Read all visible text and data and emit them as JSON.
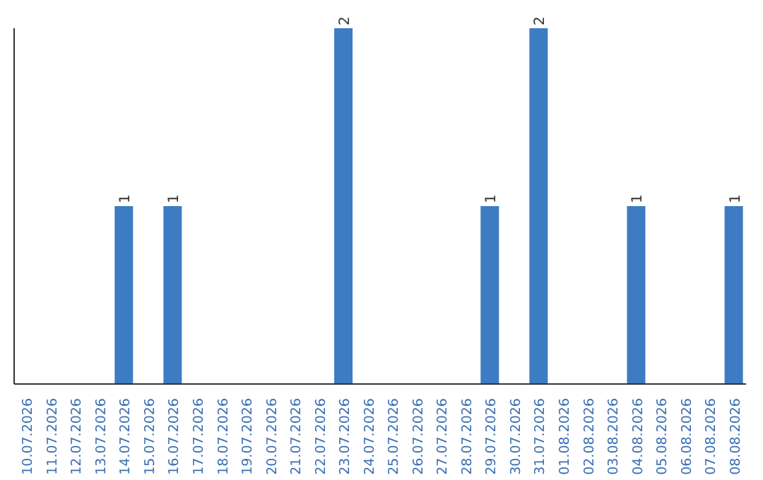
{
  "chart_data": {
    "type": "bar",
    "categories": [
      "10.07.2026",
      "11.07.2026",
      "12.07.2026",
      "13.07.2026",
      "14.07.2026",
      "15.07.2026",
      "16.07.2026",
      "17.07.2026",
      "18.07.2026",
      "19.07.2026",
      "20.07.2026",
      "21.07.2026",
      "22.07.2026",
      "23.07.2026",
      "24.07.2026",
      "25.07.2026",
      "26.07.2026",
      "27.07.2026",
      "28.07.2026",
      "29.07.2026",
      "30.07.2026",
      "31.07.2026",
      "01.08.2026",
      "02.08.2026",
      "03.08.2026",
      "04.08.2026",
      "05.08.2026",
      "06.08.2026",
      "07.08.2026",
      "08.08.2026"
    ],
    "values": [
      0,
      0,
      0,
      0,
      1,
      0,
      1,
      0,
      0,
      0,
      0,
      0,
      0,
      2,
      0,
      0,
      0,
      0,
      0,
      1,
      0,
      2,
      0,
      0,
      0,
      1,
      0,
      0,
      0,
      1
    ],
    "value_labels": [
      null,
      null,
      null,
      null,
      "1",
      null,
      "1",
      null,
      null,
      null,
      null,
      null,
      null,
      "2",
      null,
      null,
      null,
      null,
      null,
      "1",
      null,
      "2",
      null,
      null,
      null,
      "1",
      null,
      null,
      null,
      "1"
    ],
    "color": "#3d7cc2",
    "tick_labels": "x"
  }
}
